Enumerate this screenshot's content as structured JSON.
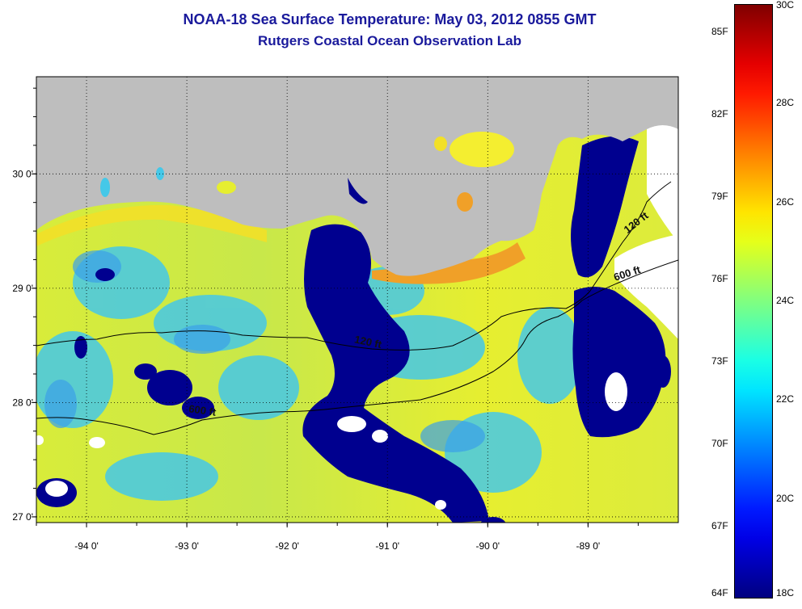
{
  "title": "NOAA-18 Sea Surface Temperature:  May 03, 2012 0855 GMT",
  "subtitle": "Rutgers Coastal Ocean Observation Lab",
  "map": {
    "lon_range": [
      -94.5,
      -88.1
    ],
    "lat_range": [
      26.95,
      30.85
    ],
    "lon_ticks": [
      {
        "value": -94,
        "label": "-94 0'"
      },
      {
        "value": -93,
        "label": "-93 0'"
      },
      {
        "value": -92,
        "label": "-92 0'"
      },
      {
        "value": -91,
        "label": "-91 0'"
      },
      {
        "value": -90,
        "label": "-90 0'"
      },
      {
        "value": -89,
        "label": "-89 0'"
      }
    ],
    "lat_ticks": [
      {
        "value": 27,
        "label": "27 0'"
      },
      {
        "value": 28,
        "label": "28 0'"
      },
      {
        "value": 29,
        "label": "29 0'"
      },
      {
        "value": 30,
        "label": "30 0'"
      }
    ],
    "contour_labels": [
      {
        "text": "120 ft",
        "lon": -91.2,
        "lat": 28.5,
        "angle": 12
      },
      {
        "text": "600 ft",
        "lon": -92.85,
        "lat": 27.9,
        "angle": 8
      },
      {
        "text": "120 ft",
        "lon": -88.5,
        "lat": 29.55,
        "angle": -38
      },
      {
        "text": "600 ft",
        "lon": -88.6,
        "lat": 29.1,
        "angle": -18
      }
    ],
    "colors": {
      "land": "#bebebe",
      "cloud": "#ffffff",
      "cold": "#00008f",
      "mid": "#2fd0e0",
      "warm": "#f2f02a",
      "hot": "#f0a028"
    }
  },
  "colorbar": {
    "colormap": "jet",
    "range_c": [
      18,
      30
    ],
    "fahrenheit_labels": [
      "85F",
      "82F",
      "79F",
      "76F",
      "73F",
      "70F",
      "67F",
      "64F"
    ],
    "celsius_labels": [
      "30C",
      "28C",
      "26C",
      "24C",
      "22C",
      "20C",
      "18C"
    ]
  }
}
